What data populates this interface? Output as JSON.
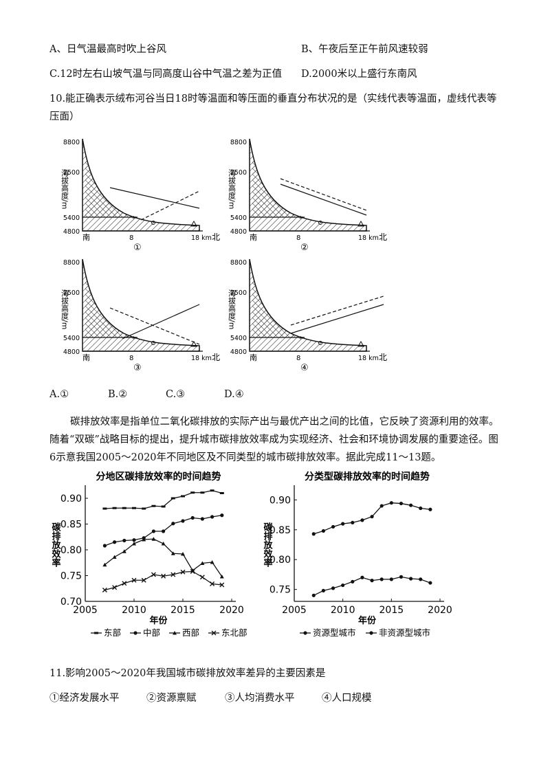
{
  "q9_options": {
    "a": "A、日气温最高时吹上谷风",
    "b": "B、午夜后至正午前风速较弱",
    "c": "C.12时左右山坡气温与同高度山谷中气温之差为正值",
    "d": "D.2000米以上盛行东南风"
  },
  "q10": {
    "stem": "10.能正确表示绒布河谷当日18时等温面和等压面的垂直分布状况的是（实线代表等温面，虚线代表等压面）",
    "diagram": {
      "y_axis_label": "海拔高度/m",
      "y_ticks": [
        "8800",
        "7500",
        "5400",
        "4800"
      ],
      "x_ticks": [
        "南",
        "8",
        "18 km",
        "北"
      ],
      "panels": [
        "①",
        "②",
        "③",
        "④"
      ]
    },
    "options": [
      "A.①",
      "B.②",
      "C.③",
      "D.④"
    ]
  },
  "passage": "碳排放效率是指单位二氧化碳排放的实际产出与最优产出之间的比值，它反映了资源利用的效率。随着“双碳”战略目标的提出，提升城市碳排放效率成为实现经济、社会和环境协调发展的重要途径。图6示意我国2005～2020年不同地区及不同类型的城市碳排放效率。据此完成11～13题。",
  "chart_data": [
    {
      "type": "line",
      "title": "分地区碳排放效率的时间趋势",
      "xlabel": "年份",
      "ylabel": "碳排放效率",
      "xlim": [
        2005,
        2020
      ],
      "ylim": [
        0.7,
        0.92
      ],
      "xticks": [
        "2005",
        "2010",
        "2015",
        "2020"
      ],
      "yticks": [
        "0.70",
        "0.75",
        "0.80",
        "0.85",
        "0.90"
      ],
      "x": [
        2007,
        2008,
        2009,
        2010,
        2011,
        2012,
        2013,
        2014,
        2015,
        2016,
        2017,
        2018,
        2019
      ],
      "series": [
        {
          "name": "东部",
          "marker": "bar",
          "values": [
            0.88,
            0.881,
            0.881,
            0.881,
            0.88,
            0.885,
            0.884,
            0.9,
            0.904,
            0.911,
            0.911,
            0.915,
            0.91
          ]
        },
        {
          "name": "中部",
          "marker": "dot",
          "values": [
            0.808,
            0.815,
            0.818,
            0.819,
            0.823,
            0.836,
            0.836,
            0.851,
            0.856,
            0.862,
            0.86,
            0.864,
            0.867
          ]
        },
        {
          "name": "西部",
          "marker": "tri",
          "values": [
            0.771,
            0.786,
            0.797,
            0.812,
            0.82,
            0.821,
            0.812,
            0.793,
            0.792,
            0.76,
            0.774,
            0.776,
            0.748
          ]
        },
        {
          "name": "东北部",
          "marker": "x",
          "values": [
            0.722,
            0.727,
            0.735,
            0.741,
            0.741,
            0.752,
            0.749,
            0.752,
            0.757,
            0.758,
            0.747,
            0.734,
            0.732
          ]
        }
      ],
      "legend": "bottom"
    },
    {
      "type": "line",
      "title": "分类型碳排放效率的时间趋势",
      "xlabel": "年份",
      "ylabel": "碳排放效率",
      "xlim": [
        2005,
        2020
      ],
      "ylim": [
        0.73,
        0.92
      ],
      "xticks": [
        "2005",
        "2010",
        "2015",
        "2020"
      ],
      "yticks": [
        "0.75",
        "0.80",
        "0.85",
        "0.90"
      ],
      "x": [
        2007,
        2008,
        2009,
        2010,
        2011,
        2012,
        2013,
        2014,
        2015,
        2016,
        2017,
        2018,
        2019
      ],
      "series": [
        {
          "name": "资源型城市",
          "marker": "dot",
          "values": [
            0.74,
            0.748,
            0.752,
            0.757,
            0.763,
            0.77,
            0.765,
            0.767,
            0.767,
            0.771,
            0.768,
            0.767,
            0.761
          ]
        },
        {
          "name": "非资源型城市",
          "marker": "dot",
          "values": [
            0.843,
            0.848,
            0.855,
            0.86,
            0.862,
            0.866,
            0.872,
            0.89,
            0.895,
            0.894,
            0.891,
            0.886,
            0.884
          ]
        }
      ],
      "legend": "bottom"
    }
  ],
  "q11": {
    "stem": "11.影响2005～2020年我国城市碳排放效率差异的主要因素是",
    "options": [
      "①经济发展水平",
      "②资源禀赋",
      "③人均消费水平",
      "④人口规模"
    ]
  }
}
